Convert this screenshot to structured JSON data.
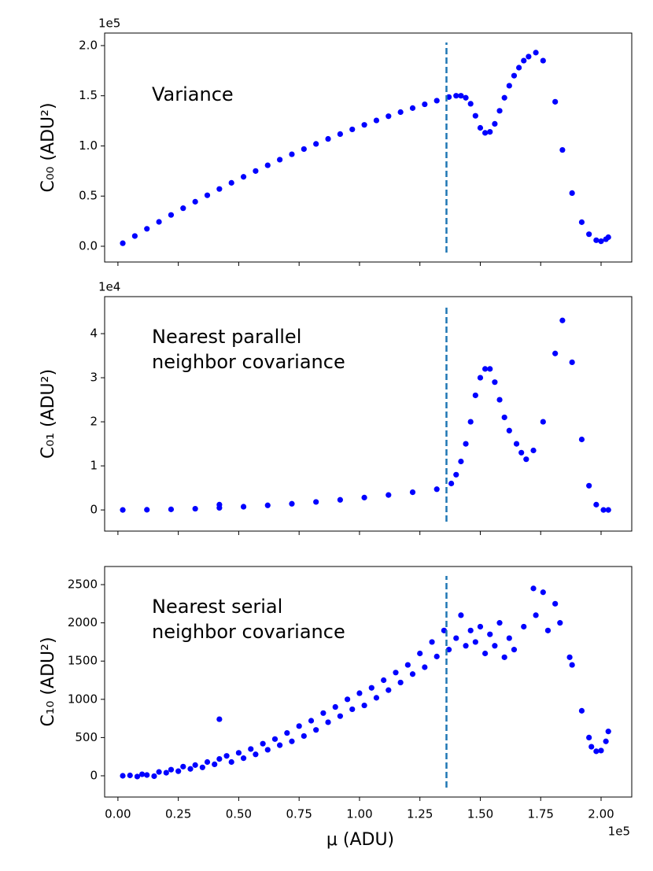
{
  "chart_data": [
    {
      "type": "scatter",
      "color": "#0000ff",
      "y_offset": "1e5",
      "ylabel": "C₀₀ (ADU²)",
      "annotation": [
        "Variance"
      ],
      "vline": 1.36,
      "vline_color": "#1f77b4",
      "xlim": [
        -0.055,
        2.127
      ],
      "xticks": [
        0,
        0.25,
        0.5,
        0.75,
        1,
        1.25,
        1.5,
        1.75,
        2
      ],
      "ylim": [
        -0.157,
        2.125
      ],
      "yticks": [
        {
          "value": 0,
          "label": "0.0"
        },
        {
          "value": 0.5,
          "label": "0.5"
        },
        {
          "value": 1,
          "label": "1.0"
        },
        {
          "value": 1.5,
          "label": "1.5"
        },
        {
          "value": 2,
          "label": "2.0"
        }
      ],
      "x": [
        0.02,
        0.07,
        0.12,
        0.17,
        0.22,
        0.27,
        0.32,
        0.37,
        0.42,
        0.47,
        0.52,
        0.57,
        0.62,
        0.67,
        0.72,
        0.77,
        0.82,
        0.87,
        0.92,
        0.97,
        1.02,
        1.07,
        1.12,
        1.17,
        1.22,
        1.27,
        1.32,
        1.37,
        1.4,
        1.42,
        1.44,
        1.46,
        1.48,
        1.5,
        1.52,
        1.54,
        1.56,
        1.58,
        1.6,
        1.62,
        1.64,
        1.66,
        1.68,
        1.7,
        1.73,
        1.76,
        1.81,
        1.84,
        1.88,
        1.92,
        1.95,
        1.98,
        2.0,
        2.02,
        2.03
      ],
      "values": [
        0.03,
        0.102,
        0.174,
        0.243,
        0.312,
        0.379,
        0.444,
        0.508,
        0.571,
        0.632,
        0.692,
        0.75,
        0.807,
        0.863,
        0.917,
        0.969,
        1.02,
        1.07,
        1.118,
        1.165,
        1.21,
        1.254,
        1.296,
        1.337,
        1.377,
        1.415,
        1.451,
        1.487,
        1.5,
        1.5,
        1.48,
        1.42,
        1.3,
        1.18,
        1.13,
        1.14,
        1.22,
        1.35,
        1.48,
        1.6,
        1.7,
        1.78,
        1.85,
        1.89,
        1.93,
        1.85,
        1.44,
        0.96,
        0.53,
        0.24,
        0.12,
        0.06,
        0.05,
        0.07,
        0.09
      ]
    },
    {
      "type": "scatter",
      "color": "#0000ff",
      "y_offset": "1e4",
      "ylabel": "C₀₁ (ADU²)",
      "annotation": [
        "Nearest parallel",
        "neighbor covariance"
      ],
      "vline": 1.36,
      "vline_color": "#1f77b4",
      "xlim": [
        -0.055,
        2.127
      ],
      "xticks": [
        0,
        0.25,
        0.5,
        0.75,
        1,
        1.25,
        1.5,
        1.75,
        2
      ],
      "ylim": [
        -0.48,
        4.84
      ],
      "yticks": [
        0,
        1,
        2,
        3,
        4
      ],
      "x": [
        0.02,
        0.12,
        0.22,
        0.32,
        0.42,
        0.42,
        0.52,
        0.62,
        0.72,
        0.82,
        0.92,
        1.02,
        1.12,
        1.22,
        1.32,
        1.38,
        1.4,
        1.42,
        1.44,
        1.46,
        1.48,
        1.5,
        1.52,
        1.54,
        1.56,
        1.58,
        1.6,
        1.62,
        1.65,
        1.67,
        1.69,
        1.72,
        1.76,
        1.81,
        1.84,
        1.88,
        1.92,
        1.95,
        1.98,
        2.01,
        2.03
      ],
      "values": [
        0,
        0.004,
        0.013,
        0.028,
        0.048,
        0.12,
        0.073,
        0.104,
        0.14,
        0.182,
        0.229,
        0.281,
        0.339,
        0.402,
        0.47,
        0.6,
        0.8,
        1.1,
        1.5,
        2.0,
        2.6,
        3.0,
        3.2,
        3.2,
        2.9,
        2.5,
        2.1,
        1.8,
        1.5,
        1.3,
        1.15,
        1.35,
        2.0,
        3.55,
        4.3,
        3.35,
        1.6,
        0.55,
        0.12,
        0,
        0
      ]
    },
    {
      "type": "scatter",
      "color": "#0000ff",
      "ylabel": "C₁₀ (ADU²)",
      "annotation": [
        "Nearest serial",
        "neighbor covariance"
      ],
      "vline": 1.36,
      "vline_color": "#1f77b4",
      "xlabel": "μ (ADU)",
      "x_offset": "1e5",
      "xlim": [
        -0.055,
        2.127
      ],
      "xticks": [
        {
          "value": 0,
          "label": "0.00"
        },
        {
          "value": 0.25,
          "label": "0.25"
        },
        {
          "value": 0.5,
          "label": "0.50"
        },
        {
          "value": 0.75,
          "label": "0.75"
        },
        {
          "value": 1,
          "label": "1.00"
        },
        {
          "value": 1.25,
          "label": "1.25"
        },
        {
          "value": 1.5,
          "label": "1.50"
        },
        {
          "value": 1.75,
          "label": "1.75"
        },
        {
          "value": 2,
          "label": "2.00"
        }
      ],
      "ylim": [
        -278,
        2737
      ],
      "yticks": [
        0,
        500,
        1000,
        1500,
        2000,
        2500
      ],
      "x": [
        0.02,
        0.05,
        0.08,
        0.1,
        0.12,
        0.15,
        0.17,
        0.2,
        0.22,
        0.25,
        0.27,
        0.3,
        0.32,
        0.35,
        0.37,
        0.4,
        0.42,
        0.42,
        0.45,
        0.47,
        0.5,
        0.52,
        0.55,
        0.57,
        0.6,
        0.62,
        0.65,
        0.67,
        0.7,
        0.72,
        0.75,
        0.77,
        0.8,
        0.82,
        0.85,
        0.87,
        0.9,
        0.92,
        0.95,
        0.97,
        1.0,
        1.02,
        1.05,
        1.07,
        1.1,
        1.12,
        1.15,
        1.17,
        1.2,
        1.22,
        1.25,
        1.27,
        1.3,
        1.32,
        1.35,
        1.37,
        1.4,
        1.42,
        1.44,
        1.46,
        1.48,
        1.5,
        1.52,
        1.54,
        1.56,
        1.58,
        1.6,
        1.62,
        1.64,
        1.68,
        1.72,
        1.73,
        1.76,
        1.78,
        1.81,
        1.83,
        1.87,
        1.88,
        1.92,
        1.95,
        1.96,
        1.98,
        2.0,
        2.02,
        2.03
      ],
      "values": [
        0,
        5,
        -10,
        20,
        10,
        -5,
        50,
        40,
        80,
        60,
        120,
        90,
        140,
        110,
        180,
        150,
        740,
        220,
        260,
        180,
        300,
        230,
        350,
        280,
        420,
        340,
        480,
        400,
        560,
        450,
        650,
        520,
        720,
        600,
        820,
        700,
        900,
        780,
        1000,
        870,
        1080,
        920,
        1150,
        1020,
        1250,
        1120,
        1350,
        1220,
        1450,
        1330,
        1600,
        1420,
        1750,
        1560,
        1900,
        1650,
        1800,
        2100,
        1700,
        1900,
        1750,
        1950,
        1600,
        1850,
        1700,
        2000,
        1550,
        1800,
        1650,
        1950,
        2450,
        2100,
        2400,
        1900,
        2250,
        2000,
        1550,
        1450,
        850,
        500,
        380,
        320,
        330,
        450,
        580
      ]
    }
  ]
}
